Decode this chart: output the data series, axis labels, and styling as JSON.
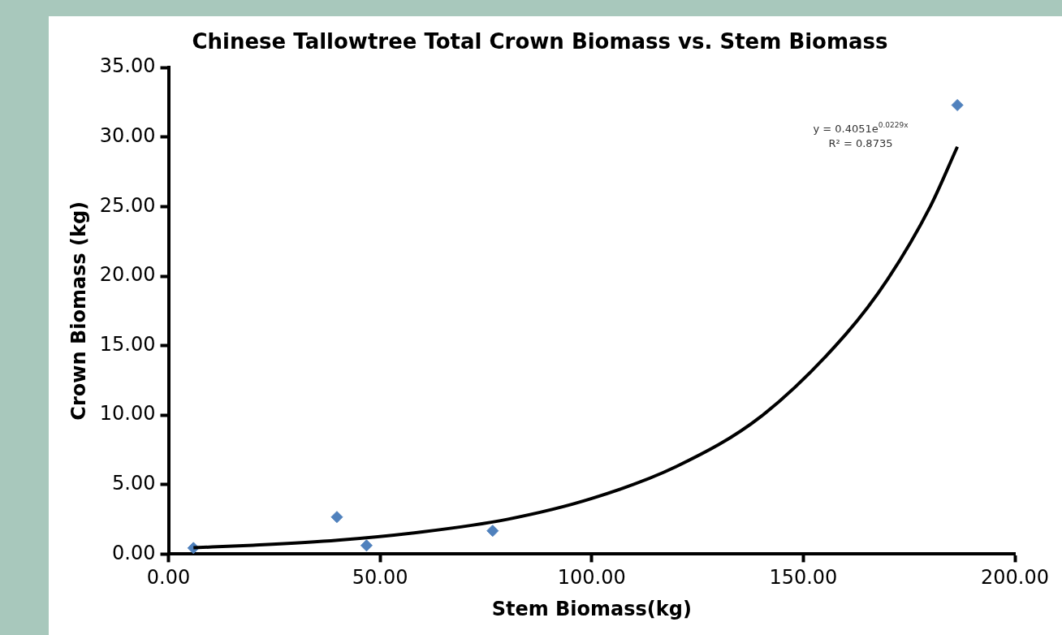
{
  "chart_data": {
    "type": "scatter",
    "title": "Chinese Tallowtree Total Crown Biomass vs. Stem Biomass",
    "xlabel": "Stem Biomass(kg)",
    "ylabel": "Crown Biomass (kg)",
    "xlim": [
      0,
      200
    ],
    "xticks": [
      {
        "value": 0,
        "label": "0.00"
      },
      {
        "value": 50,
        "label": "50.00"
      },
      {
        "value": 100,
        "label": "100.00"
      },
      {
        "value": 150,
        "label": "150.00"
      },
      {
        "value": 200,
        "label": "200.00"
      }
    ],
    "ylim": [
      0,
      35
    ],
    "yticks": [
      {
        "value": 0,
        "label": "0.00"
      },
      {
        "value": 5,
        "label": "5.00"
      },
      {
        "value": 10,
        "label": "10.00"
      },
      {
        "value": 15,
        "label": "15.00"
      },
      {
        "value": 20,
        "label": "20.00"
      },
      {
        "value": 25,
        "label": "25.00"
      },
      {
        "value": 30,
        "label": "30.00"
      },
      {
        "value": 35,
        "label": "35.00"
      }
    ],
    "grid": false,
    "legend": false,
    "series": [
      {
        "type": "scatter",
        "marker": "diamond",
        "color": "#4f81bd",
        "x": [
          5.9,
          39.8,
          46.8,
          76.6,
          186.4
        ],
        "values": [
          0.44,
          2.67,
          0.62,
          1.68,
          32.3
        ]
      },
      {
        "type": "line",
        "marker": "none",
        "color": "#000000",
        "line_style": "solid",
        "x": [
          5.9,
          20,
          40,
          60,
          80,
          100,
          120,
          140,
          160,
          170,
          180,
          186.4
        ],
        "values": [
          0.46,
          0.64,
          1.0,
          1.6,
          2.5,
          4.0,
          6.3,
          9.9,
          15.8,
          19.8,
          25.0,
          29.3
        ]
      }
    ],
    "annotations": [
      "y = 0.4051e$^{0.0229x}$",
      "R² = 0.8735"
    ]
  }
}
